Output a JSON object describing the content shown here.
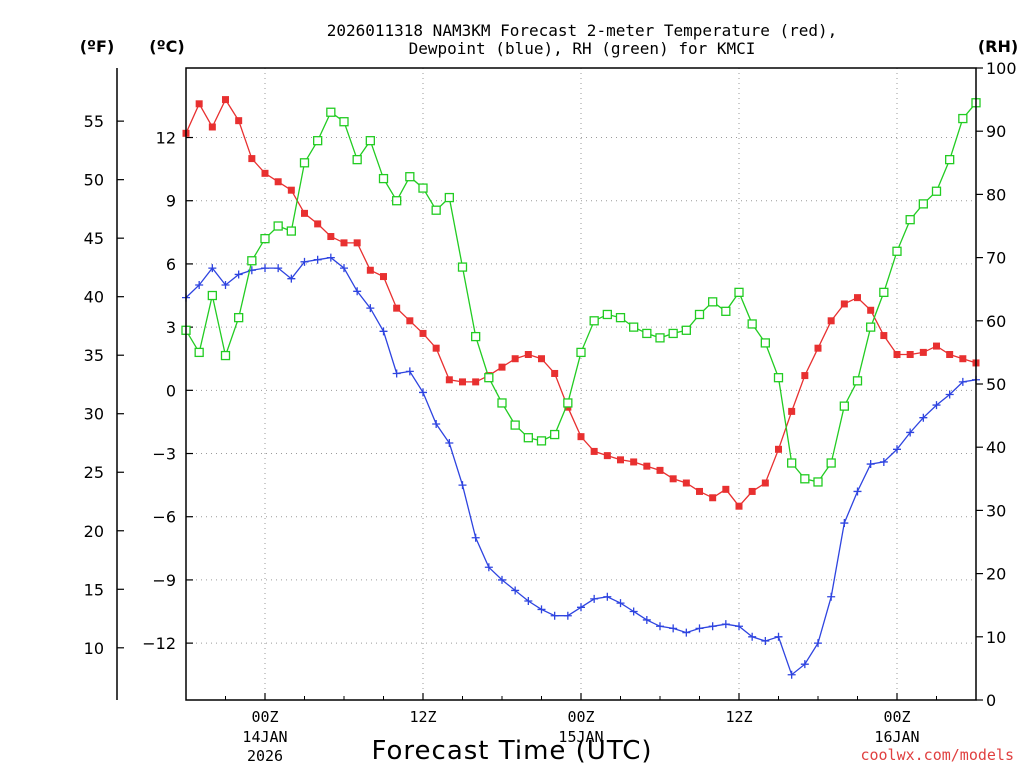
{
  "chart_data": {
    "type": "line",
    "title_line1": "2026011318 NAM3KM Forecast 2-meter Temperature (red),",
    "title_line2": "Dewpoint (blue), RH (green) for KMCI",
    "xlabel": "Forecast Time (UTC)",
    "credit": "coolwx.com/models",
    "left_outer_unit": "(ºF)",
    "left_inner_unit": "(ºC)",
    "right_unit": "(RH)",
    "fahrenheit_ticks": [
      "10",
      "15",
      "20",
      "25",
      "30",
      "35",
      "40",
      "45",
      "50",
      "55"
    ],
    "fahrenheit_values": [
      10,
      15,
      20,
      25,
      30,
      35,
      40,
      45,
      50,
      55
    ],
    "celsius_ticks": [
      "−12",
      "−9",
      "−6",
      "−3",
      "0",
      "3",
      "6",
      "9",
      "12"
    ],
    "celsius_values": [
      -12,
      -9,
      -6,
      -3,
      0,
      3,
      6,
      9,
      12
    ],
    "rh_ticks": [
      "0",
      "10",
      "20",
      "30",
      "40",
      "50",
      "60",
      "70",
      "80",
      "90",
      "100"
    ],
    "rh_values": [
      0,
      10,
      20,
      30,
      40,
      50,
      60,
      70,
      80,
      90,
      100
    ],
    "ylim_celsius": [
      -14.7,
      15.3
    ],
    "ylim_rh": [
      0,
      100
    ],
    "xlim_hours": [
      18,
      78
    ],
    "x_ticks": [
      {
        "hour": 24,
        "label": "00Z",
        "date": "14JAN",
        "year": "2026"
      },
      {
        "hour": 36,
        "label": "12Z",
        "date": "",
        "year": ""
      },
      {
        "hour": 48,
        "label": "00Z",
        "date": "15JAN",
        "year": ""
      },
      {
        "hour": 60,
        "label": "12Z",
        "date": "",
        "year": ""
      },
      {
        "hour": 72,
        "label": "00Z",
        "date": "16JAN",
        "year": ""
      }
    ],
    "x_hours": [
      18,
      19,
      20,
      21,
      22,
      23,
      24,
      25,
      26,
      27,
      28,
      29,
      30,
      31,
      32,
      33,
      34,
      35,
      36,
      37,
      38,
      39,
      40,
      41,
      42,
      43,
      44,
      45,
      46,
      47,
      48,
      49,
      50,
      51,
      52,
      53,
      54,
      55,
      56,
      57,
      58,
      59,
      60,
      61,
      62,
      63,
      64,
      65,
      66,
      67,
      68,
      69,
      70,
      71,
      72,
      73,
      74,
      75,
      76,
      77,
      78
    ],
    "series": [
      {
        "name": "2-meter Temperature",
        "unit": "C",
        "color": "#e83030",
        "marker": "filled-square",
        "values": [
          12.2,
          13.6,
          12.5,
          13.8,
          12.8,
          11.0,
          10.3,
          9.9,
          9.5,
          8.4,
          7.9,
          7.3,
          7.0,
          7.0,
          5.7,
          5.4,
          3.9,
          3.3,
          2.7,
          2.0,
          0.5,
          0.4,
          0.4,
          0.7,
          1.1,
          1.5,
          1.7,
          1.5,
          0.8,
          -0.8,
          -2.2,
          -2.9,
          -3.1,
          -3.3,
          -3.4,
          -3.6,
          -3.8,
          -4.2,
          -4.4,
          -4.8,
          -5.1,
          -4.7,
          -5.5,
          -4.8,
          -4.4,
          -2.8,
          -1.0,
          0.7,
          2.0,
          3.3,
          4.1,
          4.4,
          3.8,
          2.6,
          1.7,
          1.7,
          1.8,
          2.1,
          1.7,
          1.5,
          1.3
        ]
      },
      {
        "name": "Dewpoint",
        "unit": "C",
        "color": "#2e44e0",
        "marker": "plus",
        "values": [
          4.4,
          5.0,
          5.8,
          5.0,
          5.5,
          5.7,
          5.8,
          5.8,
          5.3,
          6.1,
          6.2,
          6.3,
          5.8,
          4.7,
          3.9,
          2.8,
          0.8,
          0.9,
          -0.1,
          -1.6,
          -2.5,
          -4.5,
          -7.0,
          -8.4,
          -9.0,
          -9.5,
          -10.0,
          -10.4,
          -10.7,
          -10.7,
          -10.3,
          -9.9,
          -9.8,
          -10.1,
          -10.5,
          -10.9,
          -11.2,
          -11.3,
          -11.5,
          -11.3,
          -11.2,
          -11.1,
          -11.2,
          -11.7,
          -11.9,
          -11.7,
          -13.5,
          -13.0,
          -12.0,
          -9.8,
          -6.3,
          -4.8,
          -3.5,
          -3.4,
          -2.8,
          -2.0,
          -1.3,
          -0.7,
          -0.2,
          0.4,
          0.5
        ]
      },
      {
        "name": "Relative Humidity",
        "unit": "%",
        "color": "#22cc22",
        "marker": "open-square",
        "values": [
          58.5,
          55,
          64,
          54.5,
          60.5,
          69.5,
          73,
          75,
          74.2,
          85,
          88.5,
          93,
          91.5,
          85.5,
          88.5,
          82.5,
          79,
          82.8,
          81,
          77.5,
          79.5,
          68.5,
          57.5,
          51,
          47,
          43.5,
          41.5,
          41,
          42,
          47,
          55,
          60,
          61,
          60.5,
          59,
          58,
          57.3,
          58,
          58.5,
          61,
          63,
          61.5,
          64.5,
          59.5,
          56.5,
          51,
          37.5,
          35,
          34.5,
          37.5,
          46.5,
          50.5,
          59,
          64.5,
          71,
          76,
          78.5,
          80.5,
          85.5,
          92,
          94.5
        ]
      }
    ]
  }
}
